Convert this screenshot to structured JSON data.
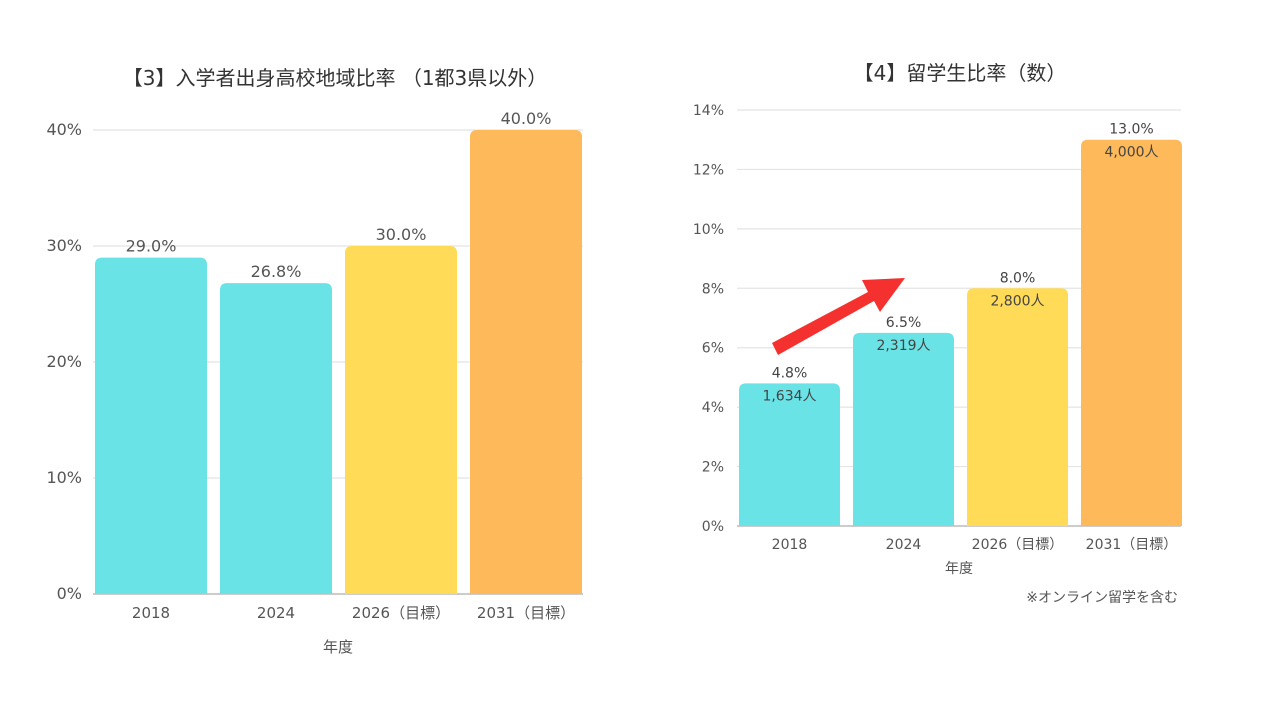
{
  "chart_data": [
    {
      "type": "bar",
      "title": "【3】入学者出身高校地域比率 （1都3県以外）",
      "xlabel": "年度",
      "ylabel": "",
      "categories": [
        "2018",
        "2024",
        "2026（目標）",
        "2031（目標）"
      ],
      "values": [
        29.0,
        26.8,
        30.0,
        40.0
      ],
      "value_labels": [
        "29.0%",
        "26.8%",
        "30.0%",
        "40.0%"
      ],
      "colors": [
        "#6ae3e6",
        "#6ae3e6",
        "#ffdb58",
        "#fdb95a"
      ],
      "ylim": [
        0,
        40
      ],
      "yticks": [
        0,
        10,
        20,
        30,
        40
      ],
      "ytick_labels": [
        "0%",
        "10%",
        "20%",
        "30%",
        "40%"
      ],
      "grid": true
    },
    {
      "type": "bar",
      "title": "【4】留学生比率（数）",
      "xlabel": "年度",
      "ylabel": "",
      "categories": [
        "2018",
        "2024",
        "2026（目標）",
        "2031（目標）"
      ],
      "values": [
        4.8,
        6.5,
        8.0,
        13.0
      ],
      "value_labels": [
        "4.8%",
        "6.5%",
        "8.0%",
        "13.0%"
      ],
      "counts": [
        "1,634人",
        "2,319人",
        "2,800人",
        "4,000人"
      ],
      "colors": [
        "#6ae3e6",
        "#6ae3e6",
        "#ffdb58",
        "#fdb95a"
      ],
      "ylim": [
        0,
        14
      ],
      "yticks": [
        0,
        2,
        4,
        6,
        8,
        10,
        12,
        14
      ],
      "ytick_labels": [
        "0%",
        "2%",
        "4%",
        "6%",
        "8%",
        "10%",
        "12%",
        "14%"
      ],
      "grid": true,
      "annotation": "※オンライン留学を含む",
      "arrow_color": "#f5312f"
    }
  ]
}
